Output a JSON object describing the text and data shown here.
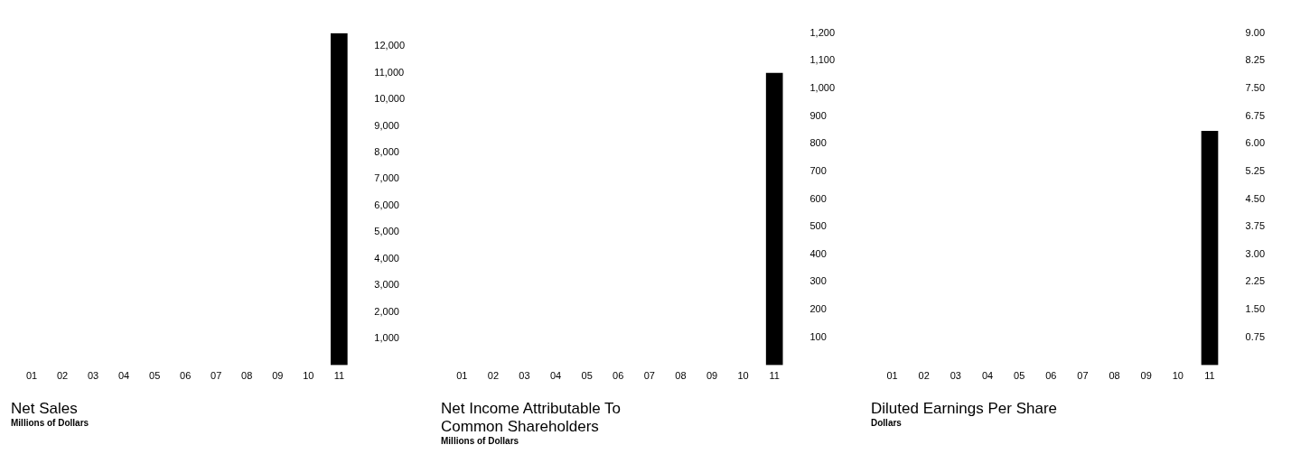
{
  "chart_data": [
    {
      "type": "bar",
      "title": "Net Sales",
      "subtitle": "Millions of Dollars",
      "categories": [
        "01",
        "02",
        "03",
        "04",
        "05",
        "06",
        "07",
        "08",
        "09",
        "10",
        "11"
      ],
      "values": [
        null,
        null,
        null,
        null,
        null,
        null,
        null,
        null,
        null,
        null,
        12480
      ],
      "color": "#000000",
      "ylim": [
        0,
        12500
      ],
      "yticks": [
        {
          "value": 1000,
          "label": "1,000"
        },
        {
          "value": 2000,
          "label": "2,000"
        },
        {
          "value": 3000,
          "label": "3,000"
        },
        {
          "value": 4000,
          "label": "4,000"
        },
        {
          "value": 5000,
          "label": "5,000"
        },
        {
          "value": 6000,
          "label": "6,000"
        },
        {
          "value": 7000,
          "label": "7,000"
        },
        {
          "value": 8000,
          "label": "8,000"
        },
        {
          "value": 9000,
          "label": "9,000"
        },
        {
          "value": 10000,
          "label": "10,000"
        },
        {
          "value": 11000,
          "label": "11,000"
        },
        {
          "value": 12000,
          "label": "12,000"
        }
      ],
      "grid": false
    },
    {
      "type": "bar",
      "title": "Net Income Attributable To Common Shareholders",
      "subtitle": "Millions of Dollars",
      "categories": [
        "01",
        "02",
        "03",
        "04",
        "05",
        "06",
        "07",
        "08",
        "09",
        "10",
        "11"
      ],
      "values": [
        null,
        null,
        null,
        null,
        null,
        null,
        null,
        null,
        null,
        null,
        1055
      ],
      "color": "#000000",
      "ylim": [
        0,
        1200
      ],
      "yticks": [
        100,
        200,
        300,
        400,
        500,
        600,
        700,
        800,
        900,
        {
          "value": 1000,
          "label": "1,000"
        },
        {
          "value": 1100,
          "label": "1,100"
        },
        {
          "value": 1200,
          "label": "1,200"
        }
      ],
      "grid": false
    },
    {
      "type": "bar",
      "title": "Diluted Earnings Per Share",
      "subtitle": "Dollars",
      "categories": [
        "01",
        "02",
        "03",
        "04",
        "05",
        "06",
        "07",
        "08",
        "09",
        "10",
        "11"
      ],
      "values": [
        null,
        null,
        null,
        null,
        null,
        null,
        null,
        null,
        null,
        null,
        6.34
      ],
      "color": "#000000",
      "ylim": [
        0,
        9
      ],
      "yticks": [
        0.75,
        {
          "value": 1.5,
          "label": "1.50"
        },
        2.25,
        {
          "value": 3,
          "label": "3.00"
        },
        3.75,
        {
          "value": 4.5,
          "label": "4.50"
        },
        5.25,
        {
          "value": 6,
          "label": "6.00"
        },
        6.75,
        {
          "value": 7.5,
          "label": "7.50"
        },
        8.25,
        {
          "value": 9,
          "label": "9.00"
        }
      ],
      "grid": false
    }
  ]
}
